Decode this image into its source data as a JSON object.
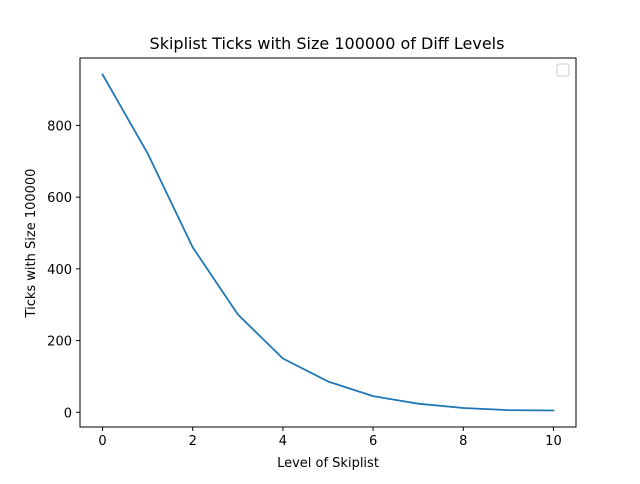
{
  "chart_data": {
    "type": "line",
    "title": "Skiplist Ticks with Size 100000 of Diff Levels",
    "xlabel": "Level of Skiplist",
    "ylabel": "Ticks with Size 100000",
    "x": [
      0,
      1,
      2,
      3,
      4,
      5,
      6,
      7,
      8,
      9,
      10
    ],
    "series": [
      {
        "values": [
          942,
          722,
          460,
          273,
          150,
          86,
          45,
          24,
          12,
          6,
          5
        ],
        "color": "#1f77b4"
      }
    ],
    "xlim": [
      -0.5,
      10.5
    ],
    "ylim": [
      -41,
      988
    ],
    "xticks": [
      0,
      2,
      4,
      6,
      8,
      10
    ],
    "yticks": [
      0,
      200,
      400,
      600,
      800
    ],
    "grid": false,
    "legend": {
      "placement": "top-right",
      "entries": []
    }
  }
}
